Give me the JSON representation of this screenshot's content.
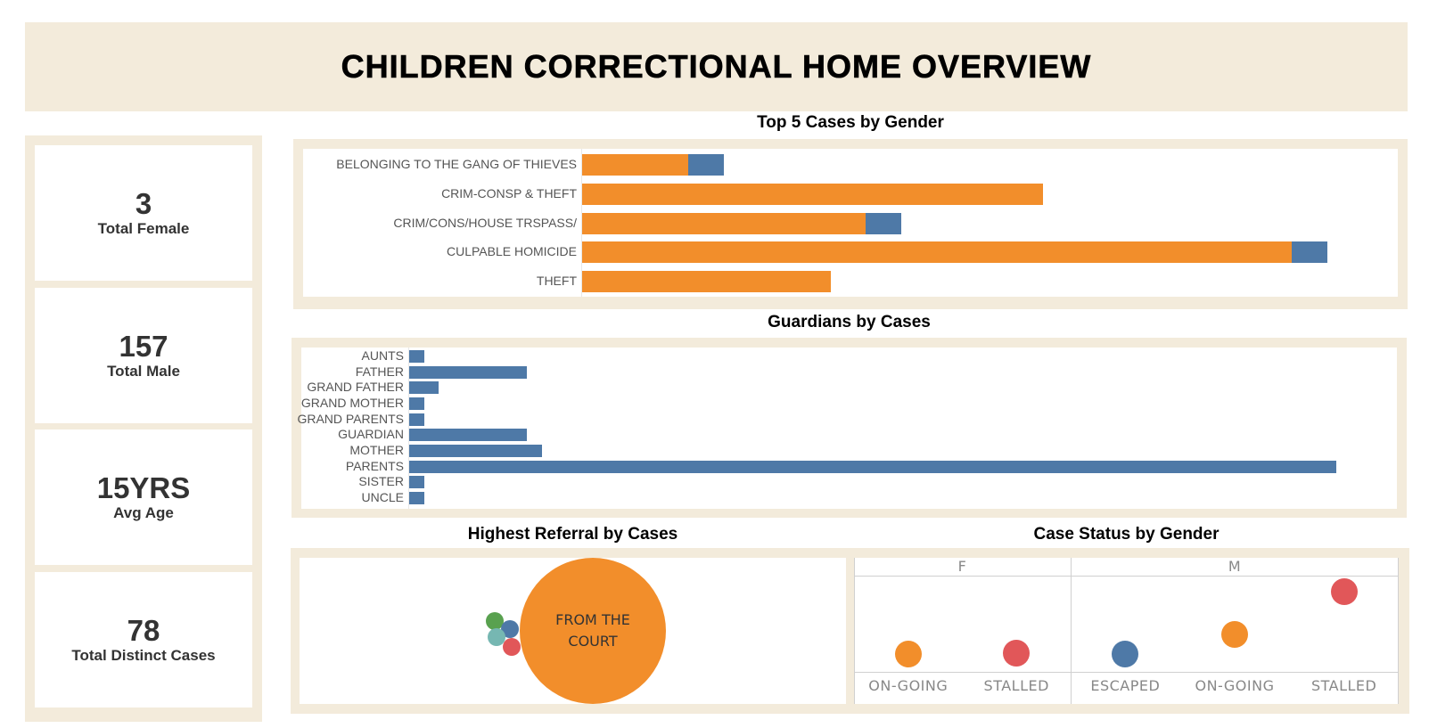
{
  "header": {
    "title": "CHILDREN CORRECTIONAL HOME OVERVIEW"
  },
  "colors": {
    "panel_bg": "#f3ebdb",
    "female": "#f28e2b",
    "male": "#4e79a7",
    "bar": "#4e79a7",
    "escaped": "#4e79a7",
    "on_going": "#f28e2b",
    "stalled": "#e15759",
    "green": "#59a14f",
    "teal": "#76b7b2",
    "red": "#e15759"
  },
  "kpis": [
    {
      "value": "3",
      "label": "Total Female"
    },
    {
      "value": "157",
      "label": "Total Male"
    },
    {
      "value": "15YRS",
      "label": "Avg Age"
    },
    {
      "value": "78",
      "label": "Total Distinct Cases"
    }
  ],
  "chart_data": [
    {
      "type": "bar",
      "orientation": "horizontal-stacked",
      "title": "Top 5 Cases by Gender",
      "categories": [
        "BELONGING TO THE GANG OF  THIEVES",
        "CRIM-CONSP & THEFT",
        "CRIM/CONS/HOUSE TRSPASS/",
        "CULPABLE HOMICIDE",
        "THEFT"
      ],
      "series": [
        {
          "name": "M",
          "color": "#f28e2b",
          "values": [
            3,
            13,
            8,
            20,
            7
          ]
        },
        {
          "name": "F",
          "color": "#4e79a7",
          "values": [
            1,
            0,
            1,
            1,
            0
          ]
        }
      ],
      "xlabel": "",
      "ylabel": "",
      "xlim": [
        0,
        22
      ],
      "grid": false
    },
    {
      "type": "bar",
      "orientation": "horizontal",
      "title": "Guardians by Cases",
      "categories": [
        "AUNTS",
        "FATHER",
        "GRAND FATHER",
        "GRAND MOTHER",
        "GRAND PARENTS",
        "GUARDIAN",
        "MOTHER",
        "PARENTS",
        "SISTER",
        "UNCLE"
      ],
      "values": [
        1,
        8,
        2,
        1,
        1,
        8,
        9,
        63,
        1,
        1
      ],
      "xlabel": "",
      "ylabel": "",
      "xlim": [
        0,
        66
      ],
      "grid": false
    },
    {
      "type": "scatter",
      "subtype": "packed-bubble",
      "title": "Highest Referral by Cases",
      "points": [
        {
          "label": "FROM THE COURT",
          "value": 70,
          "color": "#f28e2b"
        },
        {
          "label": "",
          "value": 2,
          "color": "#59a14f"
        },
        {
          "label": "",
          "value": 2,
          "color": "#4e79a7"
        },
        {
          "label": "",
          "value": 2,
          "color": "#76b7b2"
        },
        {
          "label": "",
          "value": 2,
          "color": "#e15759"
        }
      ]
    },
    {
      "type": "scatter",
      "title": "Case Status by Gender",
      "panels": [
        {
          "name": "F",
          "categories": [
            "ON-GOING",
            "STALLED"
          ],
          "values": [
            1,
            2
          ],
          "colors": [
            "#f28e2b",
            "#e15759"
          ]
        },
        {
          "name": "M",
          "categories": [
            "ESCAPED",
            "ON-GOING",
            "STALLED"
          ],
          "values": [
            1,
            23,
            70
          ],
          "colors": [
            "#4e79a7",
            "#f28e2b",
            "#e15759"
          ]
        }
      ],
      "ylim": [
        -3,
        85
      ],
      "grid": false
    }
  ]
}
